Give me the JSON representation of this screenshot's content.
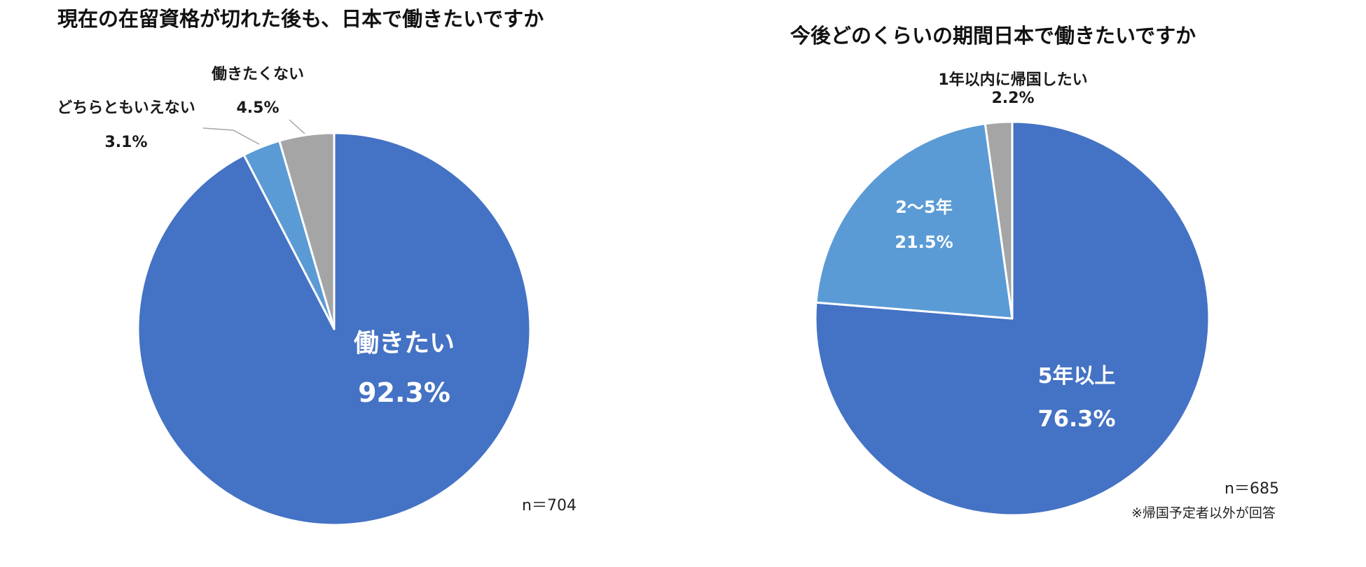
{
  "colors": {
    "blue": "#4472C4",
    "light_blue": "#5B9BD5",
    "gray": "#A5A5A5",
    "white": "#FFFFFF",
    "text": "#1a1a1a"
  },
  "chart_data": [
    {
      "type": "pie",
      "title": "現在の在留資格が切れた後も、日本で働きたいですか",
      "start_angle_deg": 0,
      "direction": "clockwise",
      "sample_note": "n＝704",
      "slices": [
        {
          "label": "働きたい",
          "value": 92.3,
          "value_label": "92.3%",
          "color": "#4472C4",
          "label_placement": "inside"
        },
        {
          "label": "どちらともいえない",
          "value": 3.1,
          "value_label": "3.1%",
          "color": "#5B9BD5",
          "label_placement": "outside"
        },
        {
          "label": "働きたくない",
          "value": 4.5,
          "value_label": "4.5%",
          "color": "#A5A5A5",
          "label_placement": "outside"
        }
      ]
    },
    {
      "type": "pie",
      "title": "今後どのくらいの期間日本で働きたいですか",
      "start_angle_deg": 0,
      "direction": "clockwise",
      "sample_note": "n＝685",
      "footnote": "※帰国予定者以外が回答",
      "slices": [
        {
          "label": "5年以上",
          "value": 76.3,
          "value_label": "76.3%",
          "color": "#4472C4",
          "label_placement": "inside"
        },
        {
          "label": "2～5年",
          "value": 21.5,
          "value_label": "21.5%",
          "color": "#5B9BD5",
          "label_placement": "inside"
        },
        {
          "label": "1年以内に帰国したい",
          "value": 2.2,
          "value_label": "2.2%",
          "color": "#A5A5A5",
          "label_placement": "outside"
        }
      ]
    }
  ]
}
